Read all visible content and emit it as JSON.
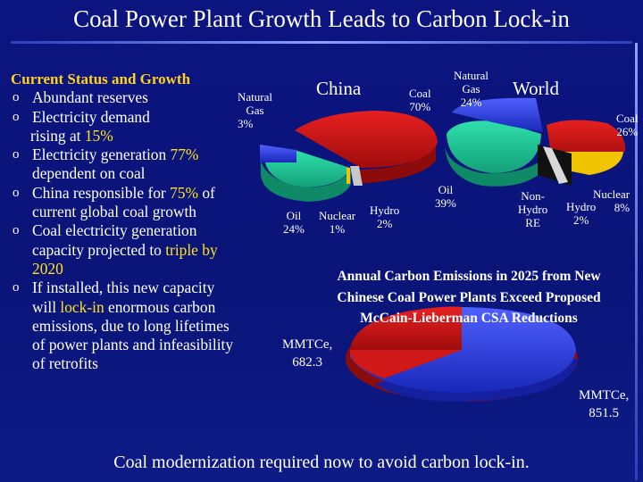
{
  "title": "Coal Power Plant Growth Leads to Carbon Lock-in",
  "left_panel": {
    "heading": "Current Status and Growth",
    "bullet_marker": "o",
    "b1": "Abundant reserves",
    "b2_a": "Electricity demand",
    "b2_b": "rising at ",
    "b2_hl": "15%",
    "b3_a": "Electricity generation ",
    "b3_hl": "77%",
    "b3_b": "dependent on coal",
    "b4_a": "China responsible for ",
    "b4_hl": "75%",
    "b4_b": " of",
    "b4_c": "current global coal growth",
    "b5_a": "Coal electricity generation",
    "b5_b": "capacity projected to ",
    "b5_hl": "triple by",
    "b5_hl2": "2020",
    "b6_a": "If installed, this new capacity",
    "b6_b": "will ",
    "b6_hl": "lock-in",
    "b6_c": " enormous carbon",
    "b6_d": "emissions, due to long lifetimes",
    "b6_e": "of power plants and infeasibility",
    "b6_f": "of retrofits"
  },
  "china_pie": {
    "label": "China",
    "slices": [
      {
        "name": "Coal",
        "pct": "70%",
        "value": 70,
        "color": "#d01818"
      },
      {
        "name": "Oil",
        "pct": "24%",
        "value": 24,
        "color": "#1fcf9a"
      },
      {
        "name": "Natural Gas",
        "pct": "3%",
        "value": 3,
        "color": "#3a48e8"
      },
      {
        "name": "Nuclear",
        "pct": "1%",
        "value": 1,
        "color": "#f0c400"
      },
      {
        "name": "Hydro",
        "pct": "2%",
        "value": 2,
        "color": "#cfcfcf"
      }
    ],
    "lbl_ng_a": "Natural",
    "lbl_ng_b": "Gas",
    "lbl_ng_pct": "3%",
    "lbl_oil": "Oil",
    "lbl_oil_pct": "24%",
    "lbl_nuc": "Nuclear",
    "lbl_nuc_pct": "1%",
    "lbl_hydro": "Hydro",
    "lbl_hydro_pct": "2%"
  },
  "world_pie": {
    "label": "World",
    "slices": [
      {
        "name": "Coal",
        "pct": "26%",
        "value": 26,
        "color": "#d01818"
      },
      {
        "name": "Natural Gas",
        "pct": "24%",
        "value": 24,
        "color": "#3a48e8"
      },
      {
        "name": "Oil",
        "pct": "39%",
        "value": 39,
        "color": "#1fcf9a"
      },
      {
        "name": "Non-Hydro RE",
        "pct": "",
        "value": 1,
        "color": "#111111"
      },
      {
        "name": "Hydro",
        "pct": "2%",
        "value": 2,
        "color": "#cfcfcf"
      },
      {
        "name": "Nuclear",
        "pct": "8%",
        "value": 8,
        "color": "#f0c400"
      }
    ],
    "lbl_coal": "Coal",
    "lbl_coal_pct": "70%",
    "lbl_ng_a": "Natural",
    "lbl_ng_b": "Gas",
    "lbl_ng_pct": "24%",
    "lbl_wcoal": "Coal",
    "lbl_wcoal_pct": "26%",
    "lbl_oil": "Oil",
    "lbl_oil_pct": "39%",
    "lbl_re_a": "Non-",
    "lbl_re_b": "Hydro",
    "lbl_re_c": "RE",
    "lbl_hydro": "Hydro",
    "lbl_hydro_pct": "2%",
    "lbl_nuc": "Nuclear",
    "lbl_nuc_pct": "8%"
  },
  "emissions_chart": {
    "title_1": "Annual Carbon Emissions in 2025 from New",
    "title_2": "Chinese Coal Power Plants Exceed Proposed",
    "title_3": "McCain-Lieberman CSA Reductions",
    "red_unit": "MMTCe,",
    "red_value": "682.3",
    "blue_unit": "MMTCe,",
    "blue_value": "851.5"
  },
  "chart_data": [
    {
      "type": "pie",
      "title": "China",
      "categories": [
        "Coal",
        "Oil",
        "Natural Gas",
        "Nuclear",
        "Hydro"
      ],
      "values": [
        70,
        24,
        3,
        1,
        2
      ]
    },
    {
      "type": "pie",
      "title": "World",
      "categories": [
        "Coal",
        "Natural Gas",
        "Oil",
        "Non-Hydro RE",
        "Hydro",
        "Nuclear"
      ],
      "values": [
        26,
        24,
        39,
        1,
        2,
        8
      ]
    },
    {
      "type": "pie",
      "title": "Annual Carbon Emissions in 2025 from New Chinese Coal Power Plants Exceed Proposed McCain-Lieberman CSA Reductions",
      "categories": [
        "MMTCe (red)",
        "MMTCe (blue)"
      ],
      "values": [
        682.3,
        851.5
      ]
    }
  ],
  "footer": "Coal modernization required now to avoid carbon lock-in."
}
